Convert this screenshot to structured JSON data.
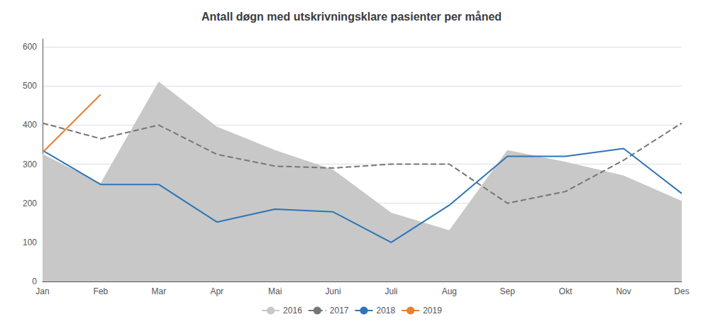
{
  "chart_data": {
    "type": "line",
    "title": "Antall døgn med utskrivningsklare pasienter per måned",
    "categories": [
      "Jan",
      "Feb",
      "Mar",
      "Apr",
      "Mai",
      "Juni",
      "Juli",
      "Aug",
      "Sep",
      "Okt",
      "Nov",
      "Des"
    ],
    "series": [
      {
        "name": "2016",
        "type": "area",
        "color": "#c8c8c8",
        "values": [
          325,
          250,
          510,
          395,
          335,
          285,
          175,
          130,
          335,
          305,
          270,
          205
        ]
      },
      {
        "name": "2017",
        "type": "line",
        "color": "#767676",
        "line_style": "dashed",
        "values": [
          405,
          365,
          400,
          325,
          295,
          290,
          300,
          300,
          200,
          230,
          310,
          405
        ]
      },
      {
        "name": "2018",
        "type": "line",
        "color": "#2e75b6",
        "line_style": "solid",
        "values": [
          335,
          248,
          248,
          152,
          185,
          178,
          100,
          195,
          320,
          320,
          340,
          225
        ]
      },
      {
        "name": "2019",
        "type": "line",
        "color": "#ed7d31",
        "line_style": "solid",
        "values": [
          330,
          478,
          null,
          null,
          null,
          null,
          null,
          null,
          null,
          null,
          null,
          null
        ]
      }
    ],
    "ylim": [
      0,
      620
    ],
    "yticks": [
      0,
      100,
      200,
      300,
      400,
      500,
      600
    ],
    "grid": true,
    "legend": "bottom"
  }
}
